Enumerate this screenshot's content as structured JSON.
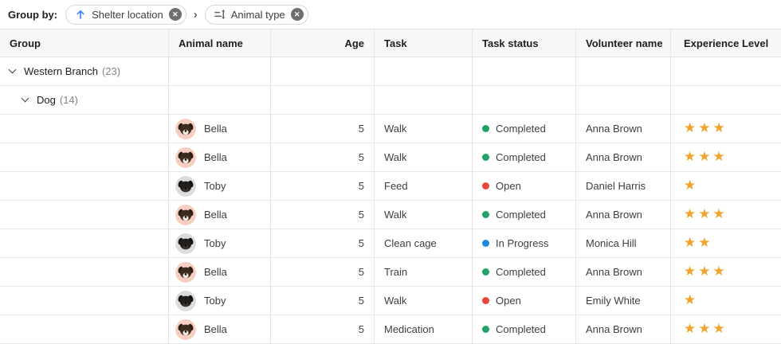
{
  "toolbar": {
    "label": "Group by:",
    "separator": "›",
    "chips": [
      {
        "icon": "sort-ascending-icon",
        "label": "Shelter location"
      },
      {
        "icon": "sort-order-icon",
        "label": "Animal type"
      }
    ]
  },
  "icons": {
    "close": "✕",
    "star": "★"
  },
  "colors": {
    "chip_arrow_blue": "#4285f4",
    "chip_icon_gray": "#5f6368",
    "star": "#f0a42c",
    "status": {
      "Completed": "#1ea362",
      "Open": "#e8453c",
      "In Progress": "#1e88e5"
    }
  },
  "avatars": {
    "bella": {
      "bg": "#f6cfc2",
      "ear": "#2a1d16",
      "fur": "#3d2b20",
      "muzzle": "#f3ece4",
      "nose": "#1c1714"
    },
    "toby": {
      "bg": "#dcdcdc",
      "ear": "#141210",
      "fur": "#201d1a",
      "muzzle": "#383330",
      "nose": "#0c0b0a"
    }
  },
  "table": {
    "columns": [
      {
        "label": "Group"
      },
      {
        "label": "Animal name"
      },
      {
        "label": "Age",
        "align": "right"
      },
      {
        "label": "Task"
      },
      {
        "label": "Task status"
      },
      {
        "label": "Volunteer name"
      },
      {
        "label": "Experience Level"
      }
    ],
    "rows": [
      {
        "type": "group",
        "level": 0,
        "label": "Western Branch",
        "count": "(23)"
      },
      {
        "type": "group",
        "level": 1,
        "label": "Dog",
        "count": "(14)"
      },
      {
        "type": "data",
        "animal": "Bella",
        "avatar": "bella",
        "age": "5",
        "task": "Walk",
        "status": "Completed",
        "volunteer": "Anna Brown",
        "stars": 3
      },
      {
        "type": "data",
        "animal": "Bella",
        "avatar": "bella",
        "age": "5",
        "task": "Walk",
        "status": "Completed",
        "volunteer": "Anna Brown",
        "stars": 3
      },
      {
        "type": "data",
        "animal": "Toby",
        "avatar": "toby",
        "age": "5",
        "task": "Feed",
        "status": "Open",
        "volunteer": "Daniel Harris",
        "stars": 1
      },
      {
        "type": "data",
        "animal": "Bella",
        "avatar": "bella",
        "age": "5",
        "task": "Walk",
        "status": "Completed",
        "volunteer": "Anna Brown",
        "stars": 3
      },
      {
        "type": "data",
        "animal": "Toby",
        "avatar": "toby",
        "age": "5",
        "task": "Clean cage",
        "status": "In Progress",
        "volunteer": "Monica Hill",
        "stars": 2
      },
      {
        "type": "data",
        "animal": "Bella",
        "avatar": "bella",
        "age": "5",
        "task": "Train",
        "status": "Completed",
        "volunteer": "Anna Brown",
        "stars": 3
      },
      {
        "type": "data",
        "animal": "Toby",
        "avatar": "toby",
        "age": "5",
        "task": "Walk",
        "status": "Open",
        "volunteer": "Emily White",
        "stars": 1
      },
      {
        "type": "data",
        "animal": "Bella",
        "avatar": "bella",
        "age": "5",
        "task": "Medication",
        "status": "Completed",
        "volunteer": "Anna Brown",
        "stars": 3
      }
    ]
  }
}
